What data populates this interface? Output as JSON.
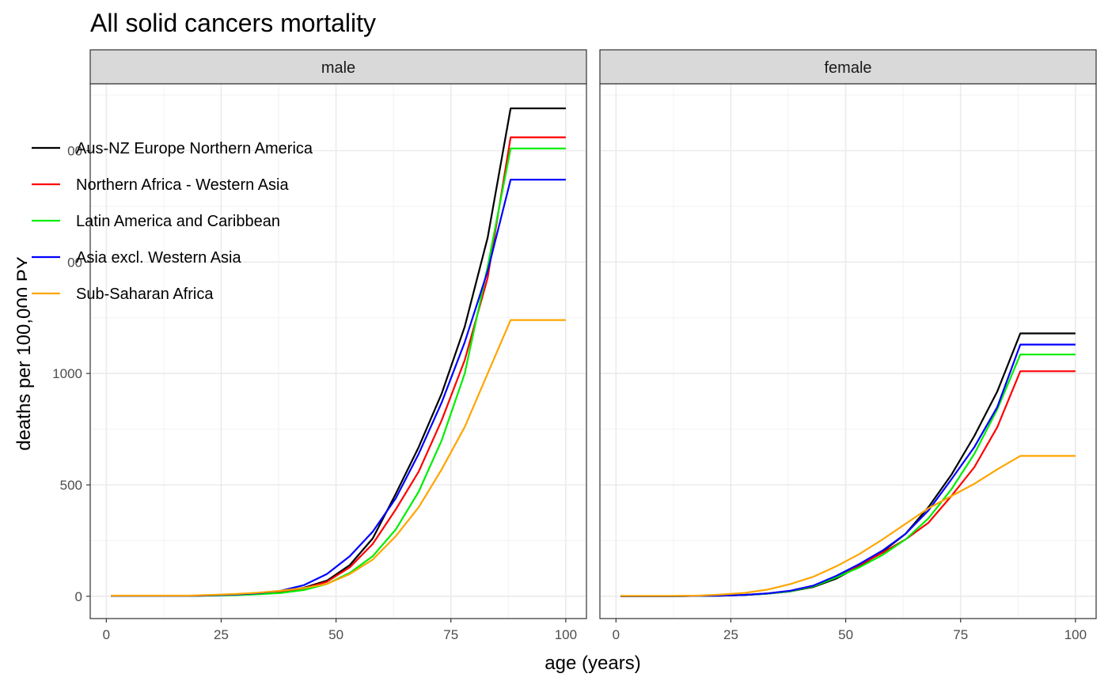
{
  "chart_data": {
    "type": "line",
    "title": "All solid cancers mortality",
    "xlabel": "age (years)",
    "ylabel": "deaths per 100,000 PY",
    "xlim": [
      -3.5,
      104.5
    ],
    "ylim": [
      -100,
      2300
    ],
    "x_ticks": [
      0,
      25,
      50,
      75,
      100
    ],
    "x_tick_labels": [
      "0",
      "25",
      "50",
      "75",
      "100"
    ],
    "y_ticks": [
      0,
      500,
      1000,
      1500,
      2000
    ],
    "y_tick_labels": [
      "0",
      "500",
      "1000",
      "",
      ""
    ],
    "y_tick_labels_partial": [
      "00",
      "00"
    ],
    "grid": true,
    "legend_position": "top-left",
    "panels": [
      {
        "label": "male",
        "x": [
          1,
          3,
          8,
          13,
          18,
          23,
          28,
          33,
          38,
          43,
          48,
          53,
          58,
          63,
          68,
          73,
          78,
          83,
          88,
          100
        ],
        "series": [
          {
            "name": "Aus-NZ Europe Northern America",
            "color": "#000000",
            "values": [
              2,
              2,
              2,
              2,
              2,
              4,
              7,
              12,
              22,
              38,
              70,
              140,
              260,
              460,
              670,
              910,
              1210,
              1610,
              2190,
              2190
            ]
          },
          {
            "name": "Northern Africa - Western Asia",
            "color": "#ff0000",
            "values": [
              2,
              2,
              2,
              2,
              2,
              4,
              7,
              12,
              20,
              35,
              65,
              130,
              235,
              390,
              560,
              790,
              1060,
              1430,
              2060,
              2060
            ]
          },
          {
            "name": "Latin America and Caribbean",
            "color": "#00ee00",
            "values": [
              2,
              2,
              2,
              2,
              2,
              3,
              5,
              9,
              15,
              28,
              55,
              105,
              180,
              300,
              470,
              700,
              1000,
              1480,
              2010,
              2010
            ]
          },
          {
            "name": "Asia excl. Western Asia",
            "color": "#0000ff",
            "values": [
              2,
              2,
              2,
              2,
              2,
              4,
              8,
              14,
              25,
              50,
              100,
              180,
              290,
              440,
              640,
              870,
              1140,
              1460,
              1870,
              1870
            ]
          },
          {
            "name": "Sub-Saharan Africa",
            "color": "#ffa500",
            "values": [
              3,
              3,
              3,
              3,
              3,
              6,
              10,
              16,
              25,
              37,
              55,
              100,
              165,
              270,
              400,
              570,
              760,
              1000,
              1240,
              1240
            ]
          }
        ]
      },
      {
        "label": "female",
        "x": [
          1,
          3,
          8,
          13,
          18,
          23,
          28,
          33,
          38,
          43,
          48,
          53,
          58,
          63,
          68,
          73,
          78,
          83,
          88,
          100
        ],
        "series": [
          {
            "name": "Aus-NZ Europe Northern America",
            "color": "#000000",
            "values": [
              1,
              1,
              1,
              1,
              2,
              3,
              6,
              12,
              22,
              42,
              80,
              135,
              200,
              280,
              400,
              545,
              720,
              920,
              1180,
              1180
            ]
          },
          {
            "name": "Northern Africa - Western Asia",
            "color": "#ff0000",
            "values": [
              1,
              1,
              1,
              1,
              2,
              3,
              6,
              13,
              25,
              48,
              90,
              140,
              195,
              255,
              330,
              450,
              580,
              760,
              1010,
              1010
            ]
          },
          {
            "name": "Latin America and Caribbean",
            "color": "#00ee00",
            "values": [
              1,
              1,
              1,
              1,
              2,
              3,
              6,
              12,
              23,
              45,
              85,
              130,
              185,
              255,
              350,
              480,
              640,
              840,
              1085,
              1085
            ]
          },
          {
            "name": "Asia excl. Western Asia",
            "color": "#0000ff",
            "values": [
              1,
              1,
              1,
              1,
              2,
              3,
              6,
              13,
              25,
              48,
              92,
              145,
              205,
              280,
              385,
              525,
              670,
              850,
              1130,
              1130
            ]
          },
          {
            "name": "Sub-Saharan Africa",
            "color": "#ffa500",
            "values": [
              2,
              2,
              2,
              2,
              3,
              8,
              15,
              30,
              55,
              88,
              135,
              190,
              255,
              325,
              395,
              450,
              505,
              570,
              630,
              630
            ]
          }
        ]
      }
    ]
  }
}
